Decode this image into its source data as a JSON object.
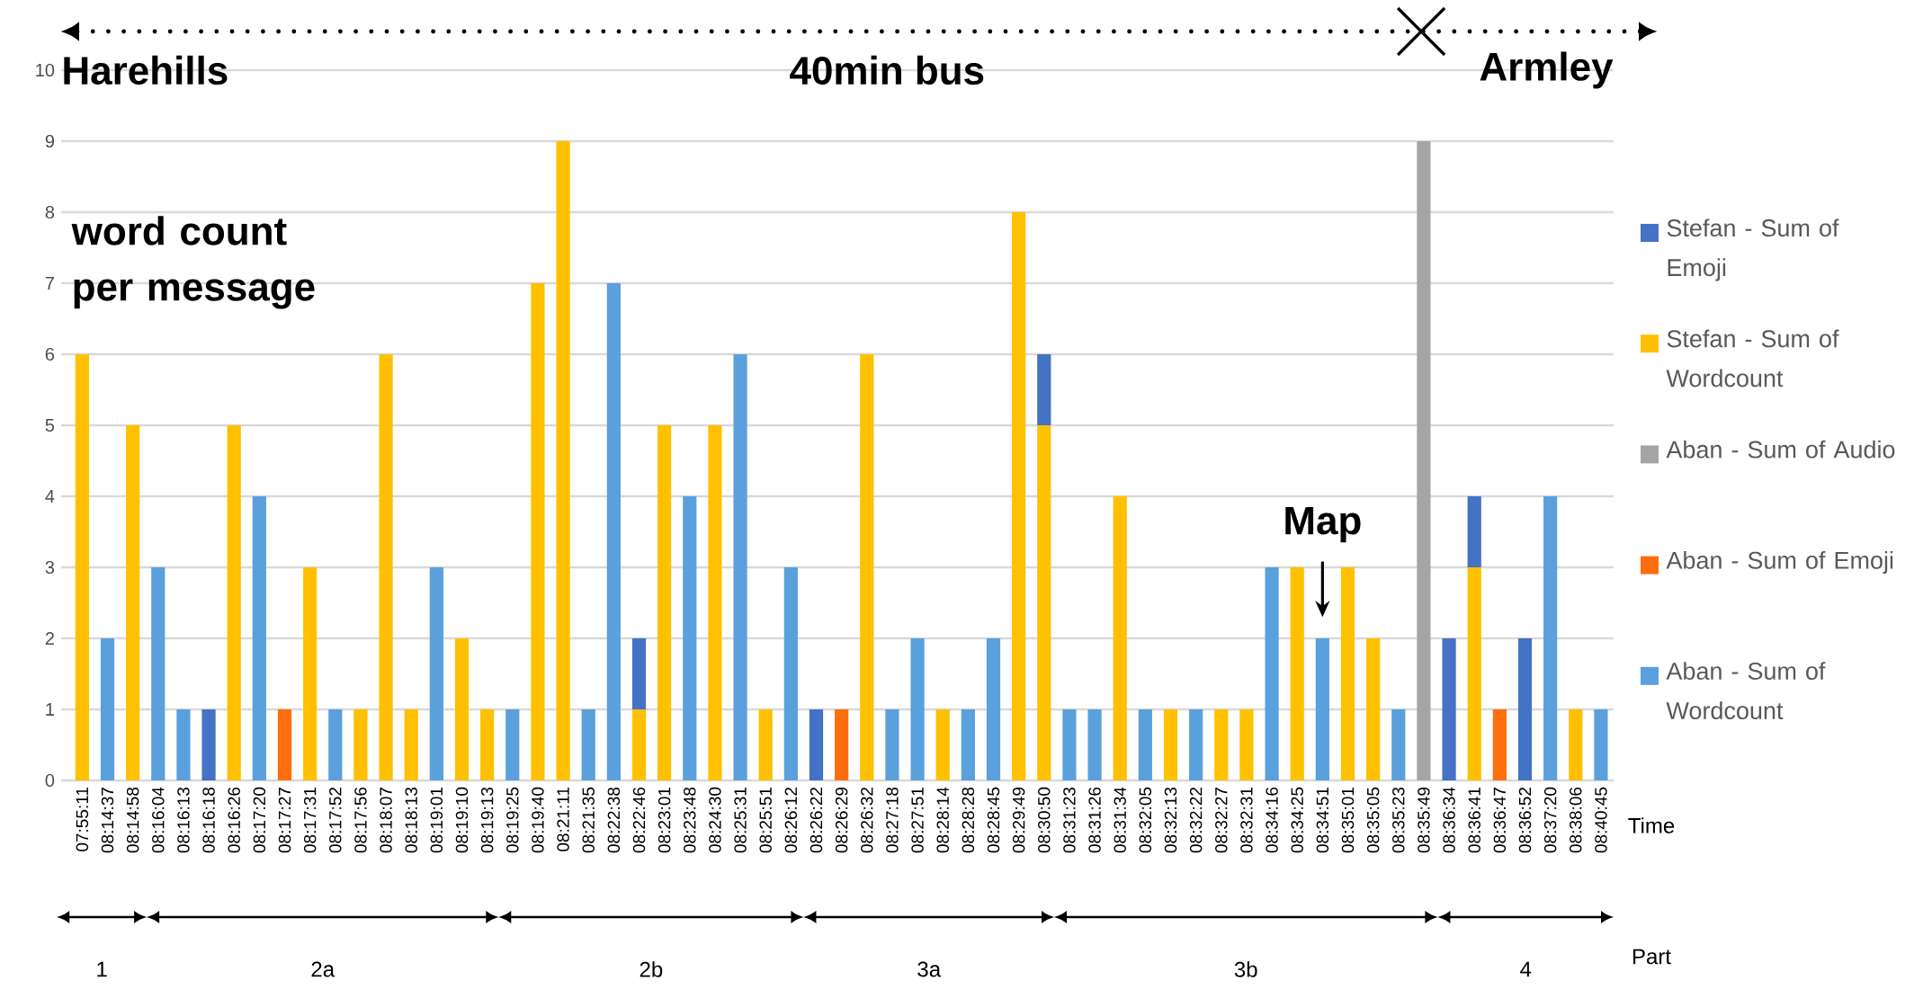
{
  "chart_data": {
    "type": "bar",
    "stacked": true,
    "ylabel": "word count per message",
    "xlabel": "Time",
    "categories": [
      "07:55:11",
      "08:14:37",
      "08:14:58",
      "08:16:04",
      "08:16:13",
      "08:16:18",
      "08:16:26",
      "08:17:20",
      "08:17:27",
      "08:17:31",
      "08:17:52",
      "08:17:56",
      "08:18:07",
      "08:18:13",
      "08:19:01",
      "08:19:10",
      "08:19:13",
      "08:19:25",
      "08:19:40",
      "08:21:11",
      "08:21:35",
      "08:22:38",
      "08:22:46",
      "08:23:01",
      "08:23:48",
      "08:24:30",
      "08:25:31",
      "08:25:51",
      "08:26:12",
      "08:26:22",
      "08:26:29",
      "08:26:32",
      "08:27:18",
      "08:27:51",
      "08:28:14",
      "08:28:28",
      "08:28:45",
      "08:29:49",
      "08:30:50",
      "08:31:23",
      "08:31:26",
      "08:31:34",
      "08:32:05",
      "08:32:13",
      "08:32:22",
      "08:32:27",
      "08:32:31",
      "08:34:16",
      "08:34:25",
      "08:34:51",
      "08:35:01",
      "08:35:05",
      "08:35:23",
      "08:35:49",
      "08:36:34",
      "08:36:41",
      "08:36:47",
      "08:36:52",
      "08:37:20",
      "08:38:06",
      "08:40:45"
    ],
    "series": [
      {
        "name": "Aban - Sum of Wordcount",
        "color": "#5aa0dc",
        "values": [
          null,
          2,
          null,
          3,
          1,
          null,
          null,
          4,
          null,
          null,
          1,
          null,
          null,
          null,
          3,
          null,
          null,
          1,
          null,
          null,
          1,
          7,
          null,
          null,
          4,
          null,
          6,
          null,
          3,
          null,
          null,
          null,
          1,
          2,
          null,
          1,
          2,
          null,
          null,
          1,
          1,
          null,
          1,
          null,
          1,
          null,
          null,
          3,
          null,
          2,
          null,
          null,
          1,
          null,
          null,
          null,
          null,
          null,
          4,
          null,
          1
        ]
      },
      {
        "name": "Aban - Sum of Emoji",
        "color": "#fe6e0c",
        "values": [
          null,
          null,
          null,
          null,
          null,
          null,
          null,
          null,
          1,
          null,
          null,
          null,
          null,
          null,
          null,
          null,
          null,
          null,
          null,
          null,
          null,
          null,
          null,
          null,
          null,
          null,
          null,
          null,
          null,
          null,
          1,
          null,
          null,
          null,
          null,
          null,
          null,
          null,
          null,
          null,
          null,
          null,
          null,
          null,
          null,
          null,
          null,
          null,
          null,
          null,
          null,
          null,
          null,
          null,
          null,
          null,
          1,
          null,
          null,
          null,
          null
        ]
      },
      {
        "name": "Aban - Sum of Audio",
        "color": "#a5a5a5",
        "values": [
          null,
          null,
          null,
          null,
          null,
          null,
          null,
          null,
          null,
          null,
          null,
          null,
          null,
          null,
          null,
          null,
          null,
          null,
          null,
          null,
          null,
          null,
          null,
          null,
          null,
          null,
          null,
          null,
          null,
          null,
          null,
          null,
          null,
          null,
          null,
          null,
          null,
          null,
          null,
          null,
          null,
          null,
          null,
          null,
          null,
          null,
          null,
          null,
          null,
          null,
          null,
          null,
          null,
          9,
          null,
          null,
          null,
          null,
          null,
          null,
          null
        ]
      },
      {
        "name": "Stefan - Sum of Wordcount",
        "color": "#ffc000",
        "values": [
          6,
          null,
          5,
          null,
          null,
          null,
          5,
          null,
          null,
          3,
          null,
          1,
          6,
          1,
          null,
          2,
          1,
          null,
          7,
          9,
          null,
          null,
          1,
          5,
          null,
          5,
          null,
          1,
          null,
          null,
          null,
          6,
          null,
          null,
          1,
          null,
          null,
          8,
          5,
          null,
          null,
          4,
          null,
          1,
          null,
          1,
          1,
          null,
          3,
          null,
          3,
          2,
          null,
          null,
          null,
          3,
          null,
          null,
          null,
          1,
          null
        ]
      },
      {
        "name": "Stefan - Sum of Emoji",
        "color": "#4472c4",
        "values": [
          null,
          null,
          null,
          null,
          null,
          1,
          null,
          null,
          null,
          null,
          null,
          null,
          null,
          null,
          null,
          null,
          null,
          null,
          null,
          null,
          null,
          null,
          1,
          null,
          null,
          null,
          null,
          null,
          null,
          1,
          null,
          null,
          null,
          null,
          null,
          null,
          null,
          null,
          1,
          null,
          null,
          null,
          null,
          null,
          null,
          null,
          null,
          null,
          null,
          null,
          null,
          null,
          null,
          null,
          2,
          1,
          null,
          2,
          null,
          null,
          null
        ]
      }
    ],
    "ylim": [
      0,
      10
    ],
    "yticks": [
      0,
      1,
      2,
      3,
      4,
      5,
      6,
      7,
      8,
      9,
      10
    ],
    "grid": "y",
    "legend": "right",
    "annotations": [
      "Harehills",
      "40min bus",
      "Armley",
      {
        "text": "Map",
        "x": "08:34:51",
        "y": 2
      },
      "Part",
      "1",
      "2a",
      "2b",
      "3a",
      "3b",
      "4"
    ]
  }
}
